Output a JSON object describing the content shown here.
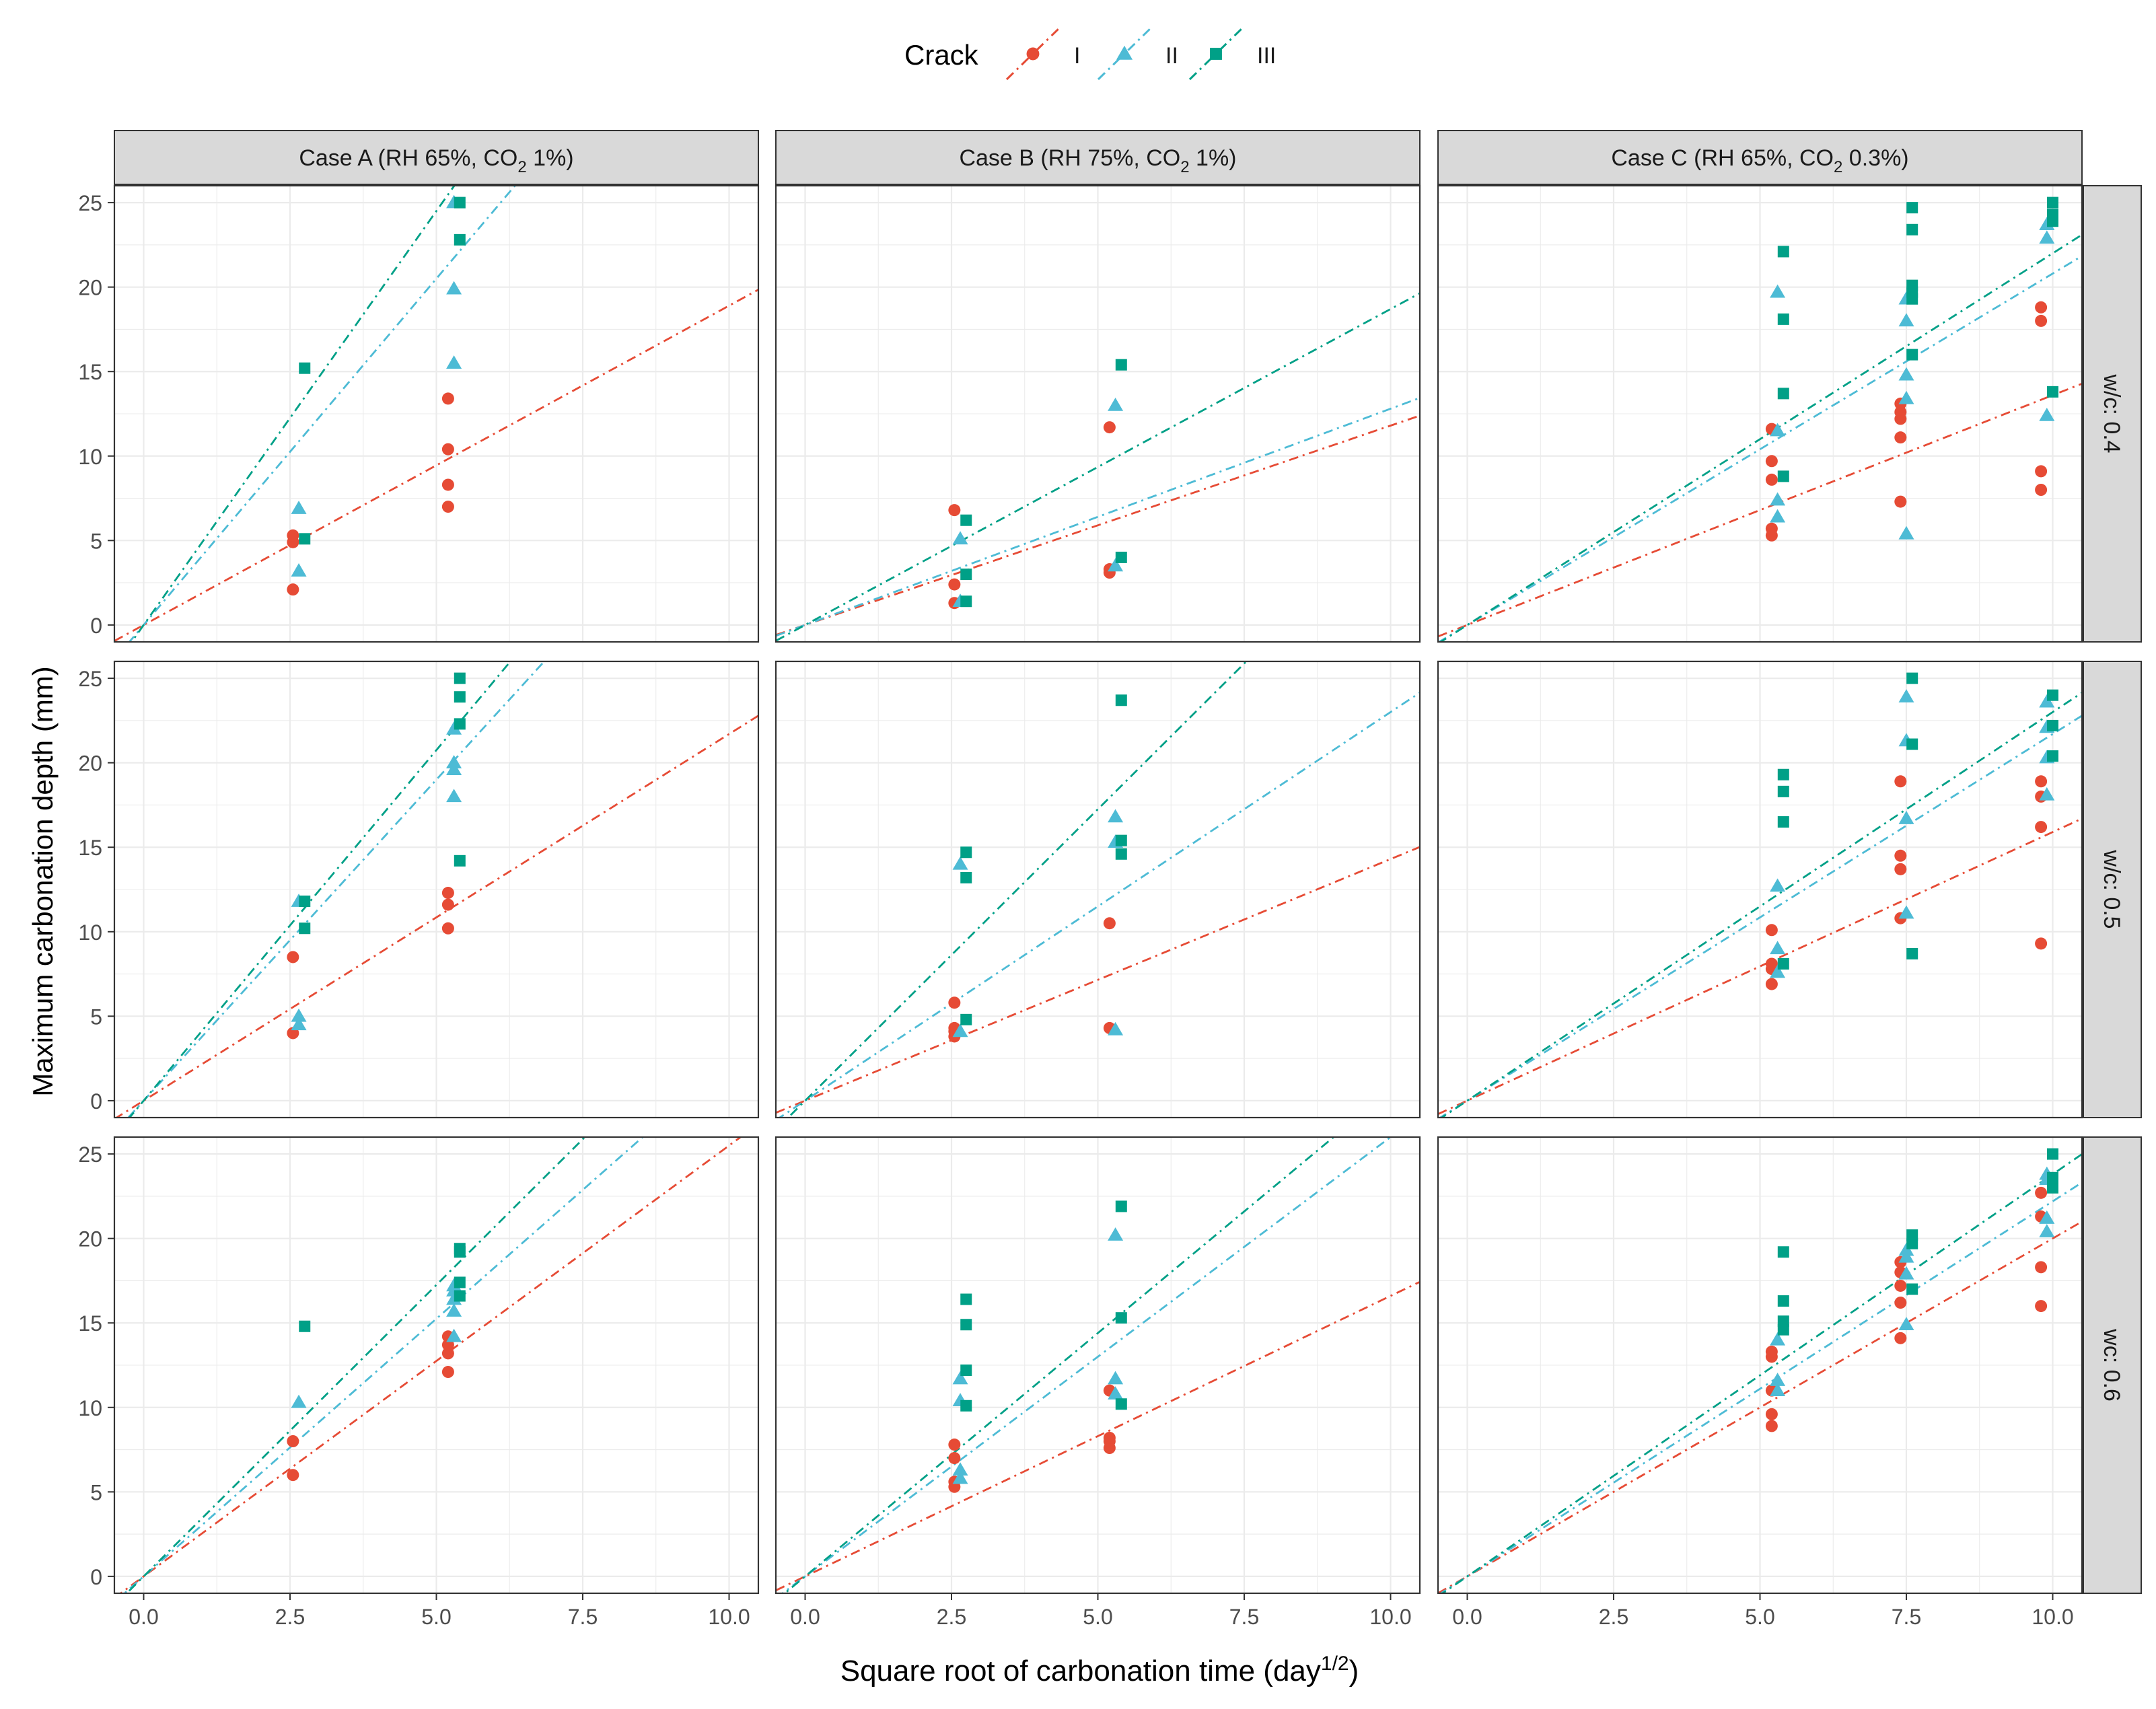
{
  "chart_data": {
    "type": "scatter",
    "title": "",
    "xlabel": "Square root of carbonation time (day",
    "xlabel_sup": "1/2",
    "xlabel_end": ")",
    "ylabel": "Maximum carbonation depth (mm)",
    "xlim": [
      -0.5,
      10.5
    ],
    "ylim": [
      -1,
      26
    ],
    "x_ticks": [
      0,
      2.5,
      5,
      7.5,
      10
    ],
    "x_tick_labels": [
      "0.0",
      "2.5",
      "5.0",
      "7.5",
      "10.0"
    ],
    "y_ticks": [
      0,
      5,
      10,
      15,
      20,
      25
    ],
    "y_tick_labels": [
      "0",
      "5",
      "10",
      "15",
      "20",
      "25"
    ],
    "grid": true,
    "legend": {
      "title": "Crack",
      "position": "top",
      "entries": [
        {
          "key": "I",
          "label": "I",
          "color": "#E64B35",
          "shape": "circle"
        },
        {
          "key": "II",
          "label": "II",
          "color": "#4DBBD5",
          "shape": "triangle"
        },
        {
          "key": "III",
          "label": "III",
          "color": "#00A087",
          "shape": "square"
        }
      ]
    },
    "columns": [
      {
        "pre": "Case A (RH 65%, CO",
        "sub": "2",
        "post": " 1%)"
      },
      {
        "pre": "Case B (RH 75%, CO",
        "sub": "2",
        "post": " 1%)"
      },
      {
        "pre": "Case C (RH 65%, CO",
        "sub": "2",
        "post": " 0.3%)"
      }
    ],
    "rows": [
      "w/c: 0.4",
      "w/c: 0.5",
      "wc: 0.6"
    ],
    "panels": [
      {
        "row": 0,
        "col": 0,
        "slopes": {
          "I": 1.89,
          "II": 4.1,
          "III": 4.9
        },
        "points": {
          "I": [
            [
              2.55,
              2.1
            ],
            [
              2.55,
              4.9
            ],
            [
              2.55,
              5.3
            ],
            [
              5.2,
              7.0
            ],
            [
              5.2,
              8.3
            ],
            [
              5.2,
              10.4
            ],
            [
              5.2,
              13.4
            ]
          ],
          "II": [
            [
              2.65,
              3.2
            ],
            [
              2.65,
              6.9
            ],
            [
              5.3,
              15.5
            ],
            [
              5.3,
              19.9
            ],
            [
              5.3,
              25.0
            ]
          ],
          "III": [
            [
              2.75,
              5.1
            ],
            [
              2.75,
              15.2
            ],
            [
              5.4,
              22.8
            ],
            [
              5.4,
              25.0
            ]
          ]
        }
      },
      {
        "row": 0,
        "col": 1,
        "slopes": {
          "I": 1.18,
          "II": 1.28,
          "III": 1.87
        },
        "points": {
          "I": [
            [
              2.55,
              1.3
            ],
            [
              2.55,
              2.4
            ],
            [
              2.55,
              6.8
            ],
            [
              5.2,
              3.1
            ],
            [
              5.2,
              3.3
            ],
            [
              5.2,
              11.7
            ]
          ],
          "II": [
            [
              2.65,
              1.4
            ],
            [
              2.65,
              5.1
            ],
            [
              5.3,
              3.5
            ],
            [
              5.3,
              13.0
            ]
          ],
          "III": [
            [
              2.75,
              1.4
            ],
            [
              2.75,
              3.0
            ],
            [
              2.75,
              6.2
            ],
            [
              5.4,
              4.0
            ],
            [
              5.4,
              15.4
            ]
          ]
        }
      },
      {
        "row": 0,
        "col": 2,
        "slopes": {
          "I": 1.36,
          "II": 2.08,
          "III": 2.2
        },
        "points": {
          "I": [
            [
              5.2,
              5.3
            ],
            [
              5.2,
              5.7
            ],
            [
              5.2,
              8.6
            ],
            [
              5.2,
              9.7
            ],
            [
              5.2,
              11.6
            ],
            [
              7.4,
              7.3
            ],
            [
              7.4,
              11.1
            ],
            [
              7.4,
              12.2
            ],
            [
              7.4,
              12.6
            ],
            [
              7.4,
              13.1
            ],
            [
              9.8,
              8.0
            ],
            [
              9.8,
              9.1
            ],
            [
              9.8,
              18.0
            ],
            [
              9.8,
              18.8
            ]
          ],
          "II": [
            [
              5.3,
              6.4
            ],
            [
              5.3,
              7.4
            ],
            [
              5.3,
              11.5
            ],
            [
              5.3,
              19.7
            ],
            [
              7.5,
              5.4
            ],
            [
              7.5,
              13.4
            ],
            [
              7.5,
              14.8
            ],
            [
              7.5,
              18.0
            ],
            [
              7.5,
              19.3
            ],
            [
              9.9,
              12.4
            ],
            [
              9.9,
              22.9
            ],
            [
              9.9,
              23.7
            ]
          ],
          "III": [
            [
              5.4,
              8.8
            ],
            [
              5.4,
              13.7
            ],
            [
              5.4,
              18.1
            ],
            [
              5.4,
              22.1
            ],
            [
              7.6,
              16.0
            ],
            [
              7.6,
              19.3
            ],
            [
              7.6,
              19.7
            ],
            [
              7.6,
              20.1
            ],
            [
              7.6,
              23.4
            ],
            [
              7.6,
              24.7
            ],
            [
              10.0,
              13.8
            ],
            [
              10.0,
              23.9
            ],
            [
              10.0,
              24.3
            ],
            [
              10.0,
              25.0
            ]
          ]
        }
      },
      {
        "row": 1,
        "col": 0,
        "slopes": {
          "I": 2.17,
          "II": 3.8,
          "III": 4.15
        },
        "points": {
          "I": [
            [
              2.55,
              4.0
            ],
            [
              2.55,
              8.5
            ],
            [
              5.2,
              10.2
            ],
            [
              5.2,
              11.6
            ],
            [
              5.2,
              12.3
            ]
          ],
          "II": [
            [
              2.65,
              4.5
            ],
            [
              2.65,
              5.0
            ],
            [
              2.65,
              11.8
            ],
            [
              5.3,
              18.0
            ],
            [
              5.3,
              19.6
            ],
            [
              5.3,
              20.0
            ],
            [
              5.3,
              22.0
            ]
          ],
          "III": [
            [
              2.75,
              10.2
            ],
            [
              2.75,
              11.8
            ],
            [
              5.4,
              14.2
            ],
            [
              5.4,
              22.3
            ],
            [
              5.4,
              23.9
            ],
            [
              5.4,
              25.0
            ]
          ]
        }
      },
      {
        "row": 1,
        "col": 1,
        "slopes": {
          "I": 1.43,
          "II": 2.3,
          "III": 3.45
        },
        "points": {
          "I": [
            [
              2.55,
              3.8
            ],
            [
              2.55,
              4.1
            ],
            [
              2.55,
              4.3
            ],
            [
              2.55,
              5.8
            ],
            [
              5.2,
              4.3
            ],
            [
              5.2,
              10.5
            ]
          ],
          "II": [
            [
              2.65,
              4.1
            ],
            [
              2.65,
              14.0
            ],
            [
              5.3,
              4.2
            ],
            [
              5.3,
              15.3
            ],
            [
              5.3,
              16.8
            ]
          ],
          "III": [
            [
              2.75,
              4.8
            ],
            [
              2.75,
              13.2
            ],
            [
              2.75,
              14.7
            ],
            [
              5.4,
              14.6
            ],
            [
              5.4,
              15.4
            ],
            [
              5.4,
              23.7
            ]
          ]
        }
      },
      {
        "row": 1,
        "col": 2,
        "slopes": {
          "I": 1.59,
          "II": 2.17,
          "III": 2.3
        },
        "points": {
          "I": [
            [
              5.2,
              6.9
            ],
            [
              5.2,
              7.8
            ],
            [
              5.2,
              8.1
            ],
            [
              5.2,
              10.1
            ],
            [
              7.4,
              10.8
            ],
            [
              7.4,
              13.7
            ],
            [
              7.4,
              14.5
            ],
            [
              7.4,
              18.9
            ],
            [
              9.8,
              9.3
            ],
            [
              9.8,
              16.2
            ],
            [
              9.8,
              18.0
            ],
            [
              9.8,
              18.9
            ]
          ],
          "II": [
            [
              5.3,
              7.6
            ],
            [
              5.3,
              9.0
            ],
            [
              5.3,
              12.7
            ],
            [
              7.5,
              11.1
            ],
            [
              7.5,
              16.7
            ],
            [
              7.5,
              21.3
            ],
            [
              7.5,
              23.9
            ],
            [
              9.9,
              18.1
            ],
            [
              9.9,
              20.3
            ],
            [
              9.9,
              22.1
            ],
            [
              9.9,
              23.6
            ]
          ],
          "III": [
            [
              5.4,
              8.1
            ],
            [
              5.4,
              16.5
            ],
            [
              5.4,
              18.3
            ],
            [
              5.4,
              19.3
            ],
            [
              7.6,
              8.7
            ],
            [
              7.6,
              21.1
            ],
            [
              7.6,
              25.0
            ],
            [
              10.0,
              20.4
            ],
            [
              10.0,
              22.2
            ],
            [
              10.0,
              24.0
            ]
          ]
        }
      },
      {
        "row": 2,
        "col": 0,
        "slopes": {
          "I": 2.55,
          "II": 3.05,
          "III": 3.45
        },
        "points": {
          "I": [
            [
              2.55,
              6.0
            ],
            [
              2.55,
              8.0
            ],
            [
              5.2,
              12.1
            ],
            [
              5.2,
              13.2
            ],
            [
              5.2,
              13.7
            ],
            [
              5.2,
              14.2
            ]
          ],
          "II": [
            [
              2.65,
              10.3
            ],
            [
              5.3,
              14.2
            ],
            [
              5.3,
              15.7
            ],
            [
              5.3,
              16.4
            ],
            [
              5.3,
              16.9
            ],
            [
              5.3,
              17.2
            ]
          ],
          "III": [
            [
              2.75,
              14.8
            ],
            [
              5.4,
              16.6
            ],
            [
              5.4,
              17.4
            ],
            [
              5.4,
              19.2
            ],
            [
              5.4,
              19.4
            ]
          ]
        }
      },
      {
        "row": 2,
        "col": 1,
        "slopes": {
          "I": 1.66,
          "II": 2.6,
          "III": 2.88
        },
        "points": {
          "I": [
            [
              2.55,
              5.3
            ],
            [
              2.55,
              5.6
            ],
            [
              2.55,
              7.0
            ],
            [
              2.55,
              7.8
            ],
            [
              5.2,
              7.6
            ],
            [
              5.2,
              8.0
            ],
            [
              5.2,
              8.2
            ],
            [
              5.2,
              11.0
            ]
          ],
          "II": [
            [
              2.65,
              5.8
            ],
            [
              2.65,
              6.3
            ],
            [
              2.65,
              10.4
            ],
            [
              2.65,
              11.7
            ],
            [
              5.3,
              10.8
            ],
            [
              5.3,
              11.7
            ],
            [
              5.3,
              20.2
            ]
          ],
          "III": [
            [
              2.75,
              10.1
            ],
            [
              2.75,
              12.2
            ],
            [
              2.75,
              14.9
            ],
            [
              2.75,
              16.4
            ],
            [
              5.4,
              10.2
            ],
            [
              5.4,
              15.3
            ],
            [
              5.4,
              21.9
            ]
          ]
        }
      },
      {
        "row": 2,
        "col": 2,
        "slopes": {
          "I": 2.0,
          "II": 2.22,
          "III": 2.38
        },
        "points": {
          "I": [
            [
              5.2,
              8.9
            ],
            [
              5.2,
              9.6
            ],
            [
              5.2,
              11.0
            ],
            [
              5.2,
              13.0
            ],
            [
              5.2,
              13.3
            ],
            [
              7.4,
              14.1
            ],
            [
              7.4,
              16.2
            ],
            [
              7.4,
              17.2
            ],
            [
              7.4,
              18.0
            ],
            [
              7.4,
              18.6
            ],
            [
              9.8,
              16.0
            ],
            [
              9.8,
              18.3
            ],
            [
              9.8,
              21.3
            ],
            [
              9.8,
              22.7
            ]
          ],
          "II": [
            [
              5.3,
              11.0
            ],
            [
              5.3,
              11.6
            ],
            [
              5.3,
              14.0
            ],
            [
              7.5,
              14.9
            ],
            [
              7.5,
              17.9
            ],
            [
              7.5,
              18.9
            ],
            [
              7.5,
              19.3
            ],
            [
              9.9,
              20.4
            ],
            [
              9.9,
              21.2
            ],
            [
              9.9,
              23.5
            ],
            [
              9.9,
              23.8
            ]
          ],
          "III": [
            [
              5.4,
              14.6
            ],
            [
              5.4,
              15.1
            ],
            [
              5.4,
              16.3
            ],
            [
              5.4,
              19.2
            ],
            [
              7.6,
              17.0
            ],
            [
              7.6,
              19.7
            ],
            [
              7.6,
              20.2
            ],
            [
              10.0,
              23.0
            ],
            [
              10.0,
              23.6
            ],
            [
              10.0,
              25.0
            ]
          ]
        }
      }
    ]
  }
}
